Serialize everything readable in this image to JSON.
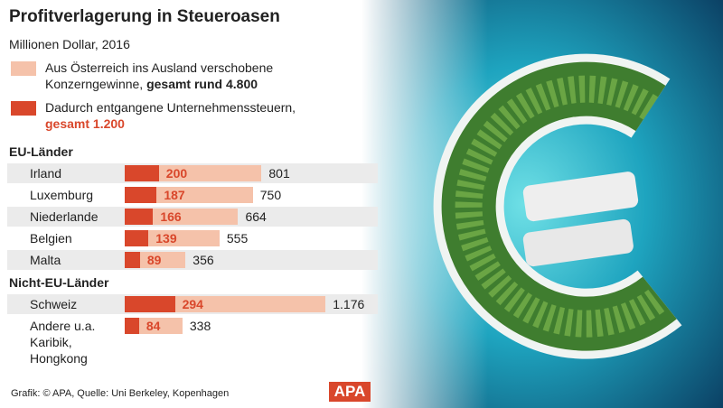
{
  "chart_data": {
    "type": "bar",
    "title": "Profitverlagerung in Steueroasen",
    "subtitle": "Millionen Dollar, 2016",
    "series": [
      {
        "name": "Aus Österreich ins Ausland verschobene Konzerngewinne,",
        "total": "gesamt rund 4.800",
        "color": "#f5c2aa",
        "values": [
          801,
          750,
          664,
          555,
          356,
          1176,
          338
        ],
        "value_labels": [
          "801",
          "750",
          "664",
          "555",
          "356",
          "1.176",
          "338"
        ]
      },
      {
        "name": "Dadurch entgangene Unternehmenssteuern,",
        "total": "gesamt 1.200",
        "color": "#d9472b",
        "values": [
          200,
          187,
          166,
          139,
          89,
          294,
          84
        ]
      }
    ],
    "groups": [
      {
        "name": "EU-Länder",
        "categories": [
          "Irland",
          "Luxemburg",
          "Niederlande",
          "Belgien",
          "Malta"
        ]
      },
      {
        "name": "Nicht-EU-Länder",
        "categories": [
          "Schweiz",
          "Andere u.a. Karibik, Hongkong"
        ]
      }
    ],
    "source": "Grafik: © APA, Quelle: Uni Berkeley, Kopenhagen",
    "logo": "APA"
  }
}
